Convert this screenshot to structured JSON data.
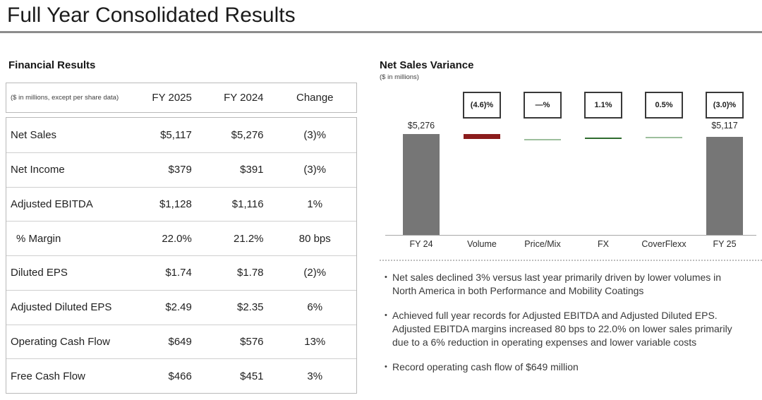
{
  "slide": {
    "title": "Full Year Consolidated Results"
  },
  "financial_results": {
    "heading": "Financial Results",
    "table": {
      "unit_note": "($ in millions, except per share data)",
      "columns": [
        "FY 2025",
        "FY 2024",
        "Change"
      ],
      "rows": [
        {
          "label": "Net Sales",
          "fy2025": "$5,117",
          "fy2024": "$5,276",
          "change": "(3)%",
          "indent": false
        },
        {
          "label": "Net Income",
          "fy2025": "$379",
          "fy2024": "$391",
          "change": "(3)%",
          "indent": false
        },
        {
          "label": "Adjusted EBITDA",
          "fy2025": "$1,128",
          "fy2024": "$1,116",
          "change": "1%",
          "indent": false
        },
        {
          "label": "% Margin",
          "fy2025": "22.0%",
          "fy2024": "21.2%",
          "change": "80 bps",
          "indent": true
        },
        {
          "label": "Diluted EPS",
          "fy2025": "$1.74",
          "fy2024": "$1.78",
          "change": "(2)%",
          "indent": false
        },
        {
          "label": "Adjusted Diluted EPS",
          "fy2025": "$2.49",
          "fy2024": "$2.35",
          "change": "6%",
          "indent": false
        },
        {
          "label": "Operating Cash Flow",
          "fy2025": "$649",
          "fy2024": "$576",
          "change": "13%",
          "indent": false
        },
        {
          "label": "Free Cash Flow",
          "fy2025": "$466",
          "fy2024": "$451",
          "change": "3%",
          "indent": false
        }
      ]
    }
  },
  "chart_data": {
    "type": "bar",
    "subtype": "waterfall",
    "title": "Net Sales Variance",
    "unit_note": "($ in millions)",
    "ylim": [
      0,
      5276
    ],
    "axis_max": 5276,
    "grid": false,
    "legend": false,
    "categories": [
      "FY 24",
      "Volume",
      "Price/Mix",
      "FX",
      "CoverFlexx",
      "FY 25"
    ],
    "columns": [
      {
        "category": "FY 24",
        "kind": "total",
        "value": 5276,
        "value_label": "$5,276",
        "box_label": null,
        "color": "#767676"
      },
      {
        "category": "Volume",
        "kind": "delta",
        "value": -243,
        "pct_of_total": -4.6,
        "box_label": "(4.6)%",
        "color": "#8b1c1c"
      },
      {
        "category": "Price/Mix",
        "kind": "delta",
        "value": 0,
        "pct_of_total": 0.0,
        "box_label": "—%",
        "color": "#9dbf9d"
      },
      {
        "category": "FX",
        "kind": "delta",
        "value": 58,
        "pct_of_total": 1.1,
        "box_label": "1.1%",
        "color": "#2e6b2e"
      },
      {
        "category": "CoverFlexx",
        "kind": "delta",
        "value": 26,
        "pct_of_total": 0.5,
        "box_label": "0.5%",
        "color": "#9dbf9d"
      },
      {
        "category": "FY 25",
        "kind": "total",
        "value": 5117,
        "value_label": "$5,117",
        "box_label": "(3.0)%",
        "color": "#767676"
      }
    ]
  },
  "bullets": {
    "marker": "•",
    "items": [
      "Net sales declined 3% versus last year primarily driven by lower volumes in North America in both Performance and Mobility Coatings",
      "Achieved full year records for Adjusted EBITDA and Adjusted Diluted EPS. Adjusted EBITDA margins increased 80 bps to 22.0% on lower sales primarily due to a 6% reduction in operating expenses and lower variable costs",
      "Record operating cash flow of $649 million"
    ]
  },
  "colors": {
    "total_bar": "#767676",
    "negative_delta": "#8b1c1c",
    "positive_delta_strong": "#2e6b2e",
    "positive_delta_light": "#9dbf9d",
    "title_rule": "#8c8c8c"
  }
}
